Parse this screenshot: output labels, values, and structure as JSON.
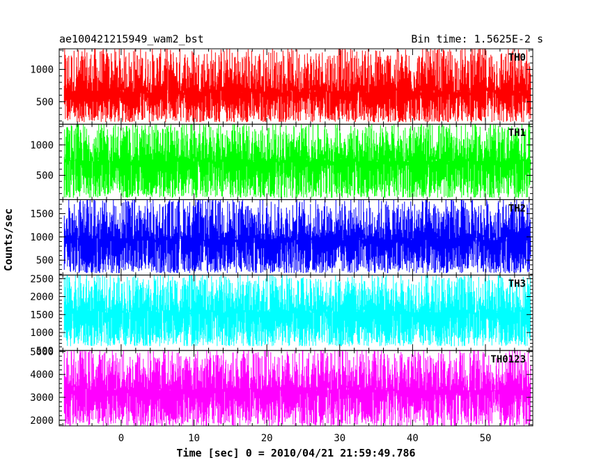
{
  "header": {
    "left": "ae100421215949_wam2_bst",
    "right": "Bin time: 1.5625E-2 s"
  },
  "chart_data": {
    "type": "line",
    "xlabel": "Time [sec] 0 = 2010/04/21 21:59:49.786",
    "ylabel": "Counts/sec",
    "xlim": [
      -8.5,
      56.5
    ],
    "x_ticks": [
      0,
      10,
      20,
      30,
      40,
      50
    ],
    "data_x_range": [
      -7.8,
      56.2
    ],
    "grid": false,
    "legend": "none",
    "panels": [
      {
        "name": "TH0",
        "color": "#ff0000",
        "ylim": [
          150,
          1320
        ],
        "y_ticks": [
          500,
          1000
        ],
        "low": 180,
        "high": 1320,
        "mean": 640
      },
      {
        "name": "TH1",
        "color": "#00ff00",
        "ylim": [
          100,
          1340
        ],
        "y_ticks": [
          500,
          1000
        ],
        "low": 130,
        "high": 1340,
        "mean": 720
      },
      {
        "name": "TH2",
        "color": "#0000ff",
        "ylim": [
          180,
          1800
        ],
        "y_ticks": [
          500,
          1000,
          1500
        ],
        "low": 220,
        "high": 1800,
        "mean": 930
      },
      {
        "name": "TH3",
        "color": "#00ffff",
        "ylim": [
          500,
          2600
        ],
        "y_ticks": [
          500,
          1000,
          1500,
          2000,
          2500
        ],
        "low": 620,
        "high": 2600,
        "mean": 1550
      },
      {
        "name": "TH0123",
        "color": "#ff00ff",
        "ylim": [
          1750,
          5050
        ],
        "y_ticks": [
          2000,
          3000,
          4000,
          5000
        ],
        "low": 1750,
        "high": 5050,
        "mean": 3300
      }
    ]
  }
}
